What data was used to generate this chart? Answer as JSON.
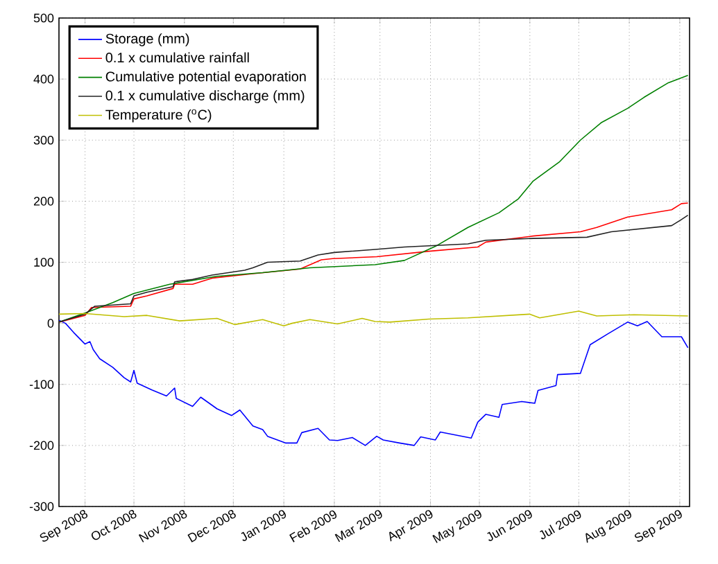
{
  "chart_data": {
    "type": "line",
    "xlim": [
      "2008-08-16",
      "2009-09-07"
    ],
    "ylim": [
      -300,
      500
    ],
    "xticks": [
      {
        "value": "2008-09-01",
        "label": "Sep 2008"
      },
      {
        "value": "2008-10-01",
        "label": "Oct 2008"
      },
      {
        "value": "2008-11-01",
        "label": "Nov 2008"
      },
      {
        "value": "2008-12-01",
        "label": "Dec 2008"
      },
      {
        "value": "2009-01-01",
        "label": "Jan 2009"
      },
      {
        "value": "2009-02-01",
        "label": "Feb 2009"
      },
      {
        "value": "2009-03-01",
        "label": "Mar 2009"
      },
      {
        "value": "2009-04-01",
        "label": "Apr 2009"
      },
      {
        "value": "2009-05-01",
        "label": "May 2009"
      },
      {
        "value": "2009-06-01",
        "label": "Jun 2009"
      },
      {
        "value": "2009-07-01",
        "label": "Jul 2009"
      },
      {
        "value": "2009-08-01",
        "label": "Aug 2009"
      },
      {
        "value": "2009-09-01",
        "label": "Sep 2009"
      }
    ],
    "yticks": [
      -300,
      -200,
      -100,
      0,
      100,
      200,
      300,
      400,
      500
    ],
    "grid": true,
    "legend": "top left",
    "series": [
      {
        "name": "Storage (mm)",
        "color": "#0000ff",
        "x": [
          "2008-08-16",
          "2008-08-20",
          "2008-08-25",
          "2008-09-01",
          "2008-09-04",
          "2008-09-06",
          "2008-09-10",
          "2008-09-18",
          "2008-09-25",
          "2008-09-29",
          "2008-10-01",
          "2008-10-03",
          "2008-10-12",
          "2008-10-21",
          "2008-10-26",
          "2008-10-27",
          "2008-11-06",
          "2008-11-11",
          "2008-11-21",
          "2008-11-30",
          "2008-12-05",
          "2008-12-13",
          "2008-12-19",
          "2008-12-22",
          "2009-01-02",
          "2009-01-09",
          "2009-01-12",
          "2009-01-22",
          "2009-01-29",
          "2009-02-03",
          "2009-02-12",
          "2009-02-20",
          "2009-02-27",
          "2009-03-03",
          "2009-03-13",
          "2009-03-22",
          "2009-03-26",
          "2009-04-04",
          "2009-04-07",
          "2009-04-26",
          "2009-04-30",
          "2009-05-05",
          "2009-05-13",
          "2009-05-15",
          "2009-05-27",
          "2009-06-04",
          "2009-06-06",
          "2009-06-17",
          "2009-06-18",
          "2009-07-02",
          "2009-07-08",
          "2009-07-19",
          "2009-07-31",
          "2009-08-06",
          "2009-08-12",
          "2009-08-21",
          "2009-09-02",
          "2009-09-06"
        ],
        "values": [
          5,
          0,
          -15,
          -34,
          -30,
          -43,
          -58,
          -72,
          -89,
          -96,
          -77,
          -98,
          -109,
          -119,
          -106,
          -123,
          -136,
          -121,
          -140,
          -151,
          -142,
          -168,
          -174,
          -185,
          -196,
          -196,
          -179,
          -172,
          -191,
          -192,
          -187,
          -200,
          -185,
          -191,
          -196,
          -200,
          -186,
          -191,
          -178,
          -188,
          -162,
          -149,
          -154,
          -133,
          -128,
          -131,
          -110,
          -102,
          -84,
          -82,
          -35,
          -17,
          2,
          -4,
          3,
          -22,
          -22,
          -40
        ]
      },
      {
        "name": "0.1 x cumulative rainfall",
        "color": "#ff0000",
        "x": [
          "2008-08-16",
          "2008-09-01",
          "2008-09-05",
          "2008-09-29",
          "2008-10-01",
          "2008-10-09",
          "2008-10-25",
          "2008-10-26",
          "2008-11-06",
          "2008-11-18",
          "2008-12-12",
          "2009-01-11",
          "2009-01-24",
          "2009-01-31",
          "2009-02-27",
          "2009-03-31",
          "2009-04-30",
          "2009-05-05",
          "2009-06-03",
          "2009-07-02",
          "2009-07-12",
          "2009-07-31",
          "2009-08-27",
          "2009-09-02",
          "2009-09-06"
        ],
        "values": [
          2,
          13,
          26,
          28,
          40,
          45,
          57,
          64,
          64,
          74,
          81,
          89,
          104,
          106,
          109,
          118,
          125,
          133,
          143,
          150,
          157,
          174,
          186,
          196,
          197
        ]
      },
      {
        "name": "Cumulative potential evaporation",
        "color": "#008000",
        "x": [
          "2008-08-16",
          "2008-09-01",
          "2008-09-18",
          "2008-10-01",
          "2008-10-23",
          "2008-11-21",
          "2008-12-19",
          "2009-01-17",
          "2009-02-26",
          "2009-03-16",
          "2009-04-04",
          "2009-04-24",
          "2009-05-13",
          "2009-05-25",
          "2009-06-03",
          "2009-06-19",
          "2009-07-02",
          "2009-07-15",
          "2009-07-31",
          "2009-08-10",
          "2009-08-25",
          "2009-09-06"
        ],
        "values": [
          2,
          17,
          34,
          49,
          64,
          77,
          83,
          91,
          96,
          103,
          126,
          157,
          181,
          204,
          233,
          264,
          300,
          329,
          352,
          370,
          394,
          406
        ]
      },
      {
        "name": "0.1 x cumulative discharge (mm)",
        "color": "#222222",
        "x": [
          "2008-08-16",
          "2008-09-01",
          "2008-09-07",
          "2008-09-29",
          "2008-10-01",
          "2008-10-09",
          "2008-10-25",
          "2008-10-26",
          "2008-11-06",
          "2008-11-18",
          "2008-12-08",
          "2008-12-13",
          "2008-12-22",
          "2009-01-11",
          "2009-01-22",
          "2009-02-01",
          "2009-02-26",
          "2009-03-16",
          "2009-04-24",
          "2009-05-05",
          "2009-06-03",
          "2009-07-06",
          "2009-07-21",
          "2009-08-27",
          "2009-09-02",
          "2009-09-06"
        ],
        "values": [
          2,
          15,
          28,
          32,
          45,
          51,
          60,
          68,
          72,
          79,
          87,
          91,
          100,
          102,
          112,
          116,
          121,
          125,
          130,
          136,
          139,
          141,
          150,
          160,
          170,
          177
        ]
      },
      {
        "name": "Temperature ($^{o}$C)",
        "color": "#bfbf00",
        "x": [
          "2008-08-16",
          "2008-09-01",
          "2008-09-25",
          "2008-10-09",
          "2008-10-29",
          "2008-11-21",
          "2008-12-02",
          "2008-12-19",
          "2009-01-01",
          "2009-01-06",
          "2009-01-17",
          "2009-02-03",
          "2009-02-18",
          "2009-02-26",
          "2009-03-07",
          "2009-03-31",
          "2009-04-24",
          "2009-06-01",
          "2009-06-07",
          "2009-07-01",
          "2009-07-12",
          "2009-08-04",
          "2009-09-06"
        ],
        "values": [
          15,
          16,
          11,
          13,
          4,
          8,
          -2,
          6,
          -4,
          0,
          6,
          -1,
          8,
          3,
          2,
          7,
          9,
          15,
          9,
          20,
          12,
          14,
          12
        ]
      }
    ]
  }
}
